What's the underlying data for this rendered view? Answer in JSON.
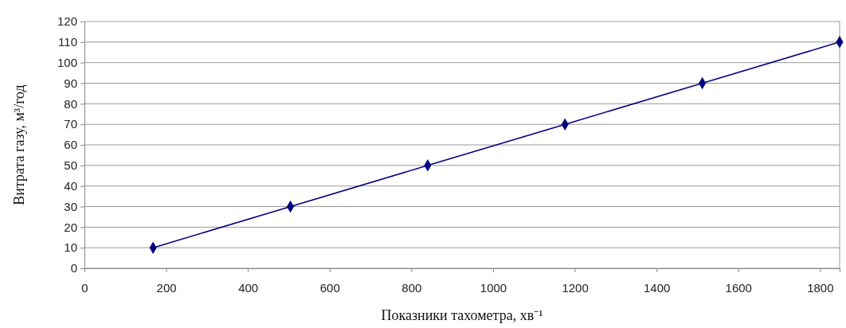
{
  "chart_data": {
    "type": "line",
    "xlabel": "Показники тахометра, хв⁻¹",
    "ylabel": "Витрата газу, м³/год",
    "x": [
      168,
      504,
      840,
      1176,
      1512,
      1848
    ],
    "series": [
      {
        "color": "#000080",
        "values": [
          10,
          30,
          50,
          70,
          90,
          110
        ]
      }
    ],
    "xlim": [
      0,
      1848
    ],
    "xticks": [
      0,
      200,
      400,
      600,
      800,
      1000,
      1200,
      1400,
      1600,
      1800
    ],
    "ylim": [
      0,
      120
    ],
    "yticks": [
      0,
      10,
      20,
      30,
      40,
      50,
      60,
      70,
      80,
      90,
      100,
      110,
      120
    ],
    "grid": "y",
    "marker": "diamond",
    "line_style": "solid"
  }
}
